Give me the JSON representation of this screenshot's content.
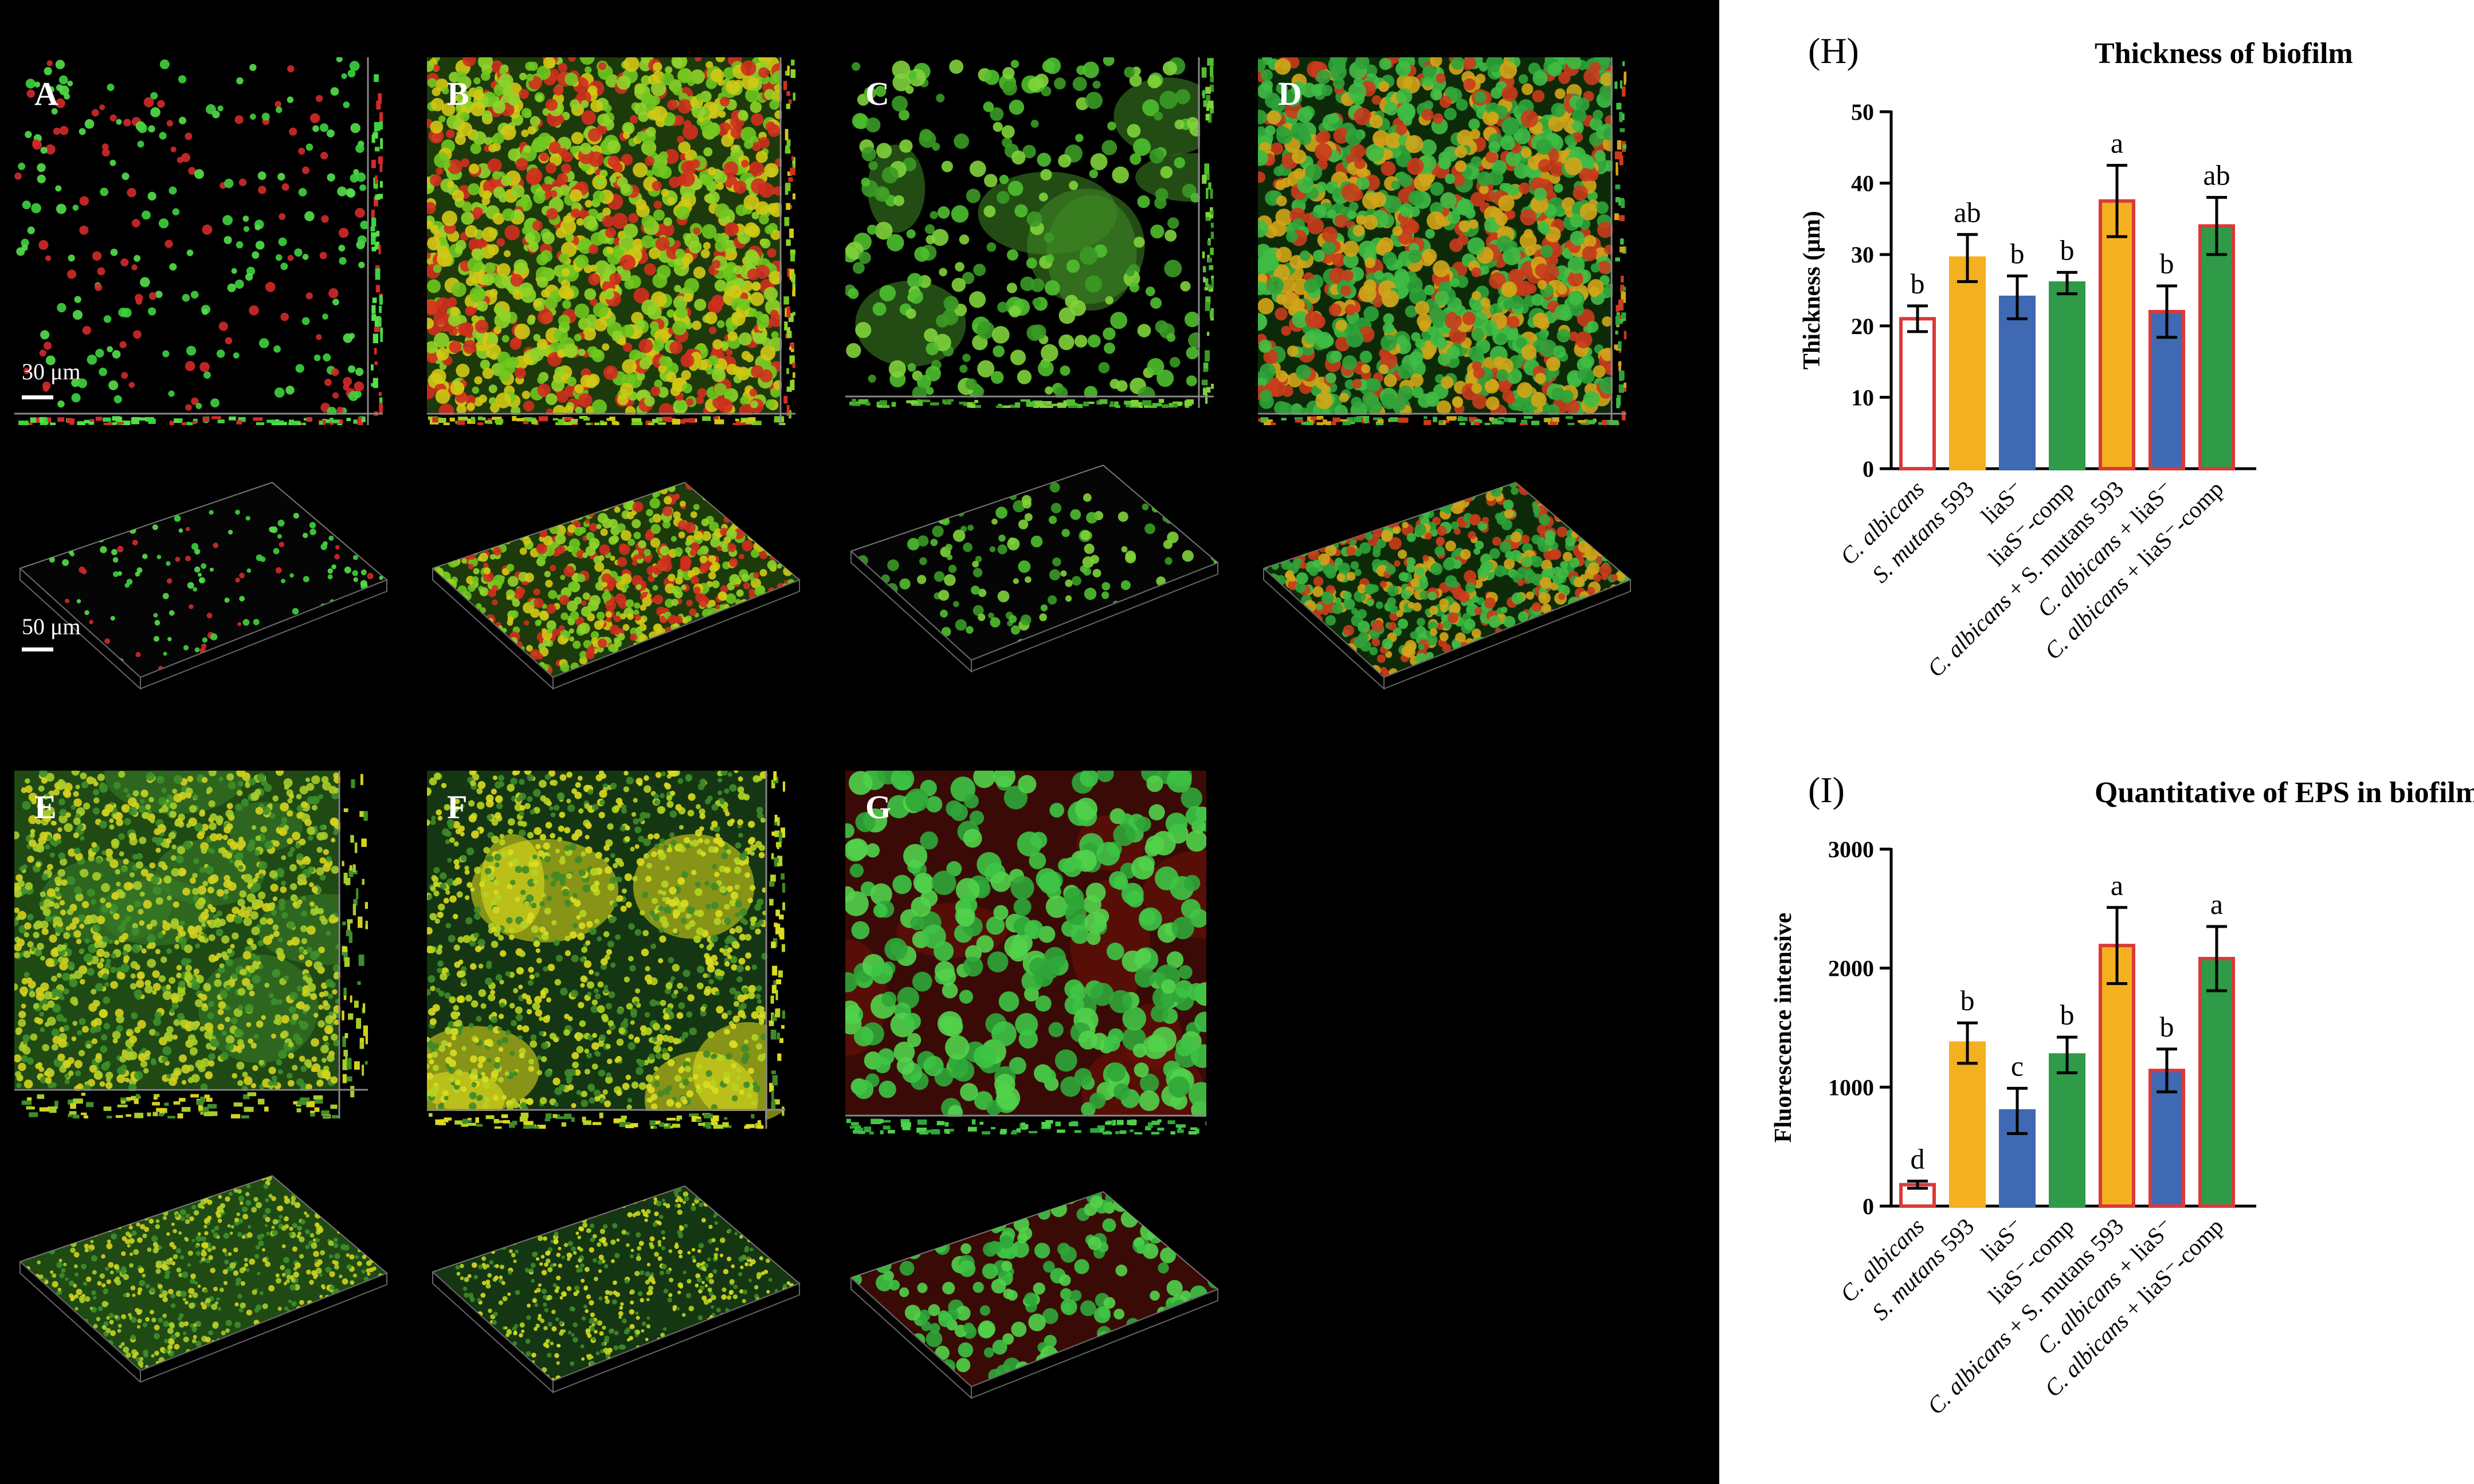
{
  "panels": [
    {
      "letter": "A",
      "style": "sparse-cells"
    },
    {
      "letter": "B",
      "style": "dense-red-green"
    },
    {
      "letter": "C",
      "style": "clusters"
    },
    {
      "letter": "D",
      "style": "dense-green"
    },
    {
      "letter": "E",
      "style": "yellow-green"
    },
    {
      "letter": "F",
      "style": "yellow-dots"
    },
    {
      "letter": "G",
      "style": "red-green-blobs"
    }
  ],
  "scale_labels": {
    "top": "30 μm",
    "bottom": "50 μm"
  },
  "colors": {
    "red": "#d93a3a",
    "orange": "#f5b01f",
    "blue": "#3f69b3",
    "green": "#2f9a48"
  },
  "chart_data": [
    {
      "type": "bar",
      "panel_label": "(H)",
      "title": "Thickness of biofilm",
      "ylabel": "Thickness (μm)",
      "ylim": [
        0,
        50
      ],
      "yticks": [
        "0",
        "10",
        "20",
        "30",
        "40",
        "50"
      ],
      "categories": [
        "C. albicans",
        "S. mutans 593",
        "liaS⁻",
        "liaS⁻-comp",
        "C. albicans + S. mutans 593",
        "C. albicans + liaS⁻",
        "C. albicans + liaS⁻-comp"
      ],
      "values": [
        21,
        29.5,
        24,
        26,
        37.5,
        22,
        34
      ],
      "errors": [
        1.8,
        3.3,
        3.0,
        1.5,
        5.0,
        3.6,
        4.0
      ],
      "letters": [
        "b",
        "ab",
        "b",
        "b",
        "a",
        "b",
        "ab"
      ],
      "fill": [
        "none",
        "orange",
        "blue",
        "green",
        "orange",
        "blue",
        "green"
      ],
      "edge": [
        "red",
        "orange",
        "blue",
        "green",
        "red",
        "red",
        "red"
      ]
    },
    {
      "type": "bar",
      "panel_label": "(I)",
      "title": "Quantitative of EPS in biofilm",
      "ylabel": "Fluorescence intensive",
      "ylim": [
        0,
        3000
      ],
      "yticks": [
        "0",
        "1000",
        "2000",
        "3000"
      ],
      "categories": [
        "C. albicans",
        "S. mutans 593",
        "liaS⁻",
        "liaS⁻-comp",
        "C. albicans + S. mutans 593",
        "C. albicans + liaS⁻",
        "C. albicans + liaS⁻-comp"
      ],
      "values": [
        180,
        1370,
        800,
        1270,
        2190,
        1140,
        2080
      ],
      "errors": [
        30,
        170,
        190,
        150,
        320,
        180,
        270
      ],
      "letters": [
        "d",
        "b",
        "c",
        "b",
        "a",
        "b",
        "a"
      ],
      "fill": [
        "none",
        "orange",
        "blue",
        "green",
        "orange",
        "blue",
        "green"
      ],
      "edge": [
        "red",
        "orange",
        "blue",
        "green",
        "red",
        "red",
        "red"
      ]
    }
  ]
}
